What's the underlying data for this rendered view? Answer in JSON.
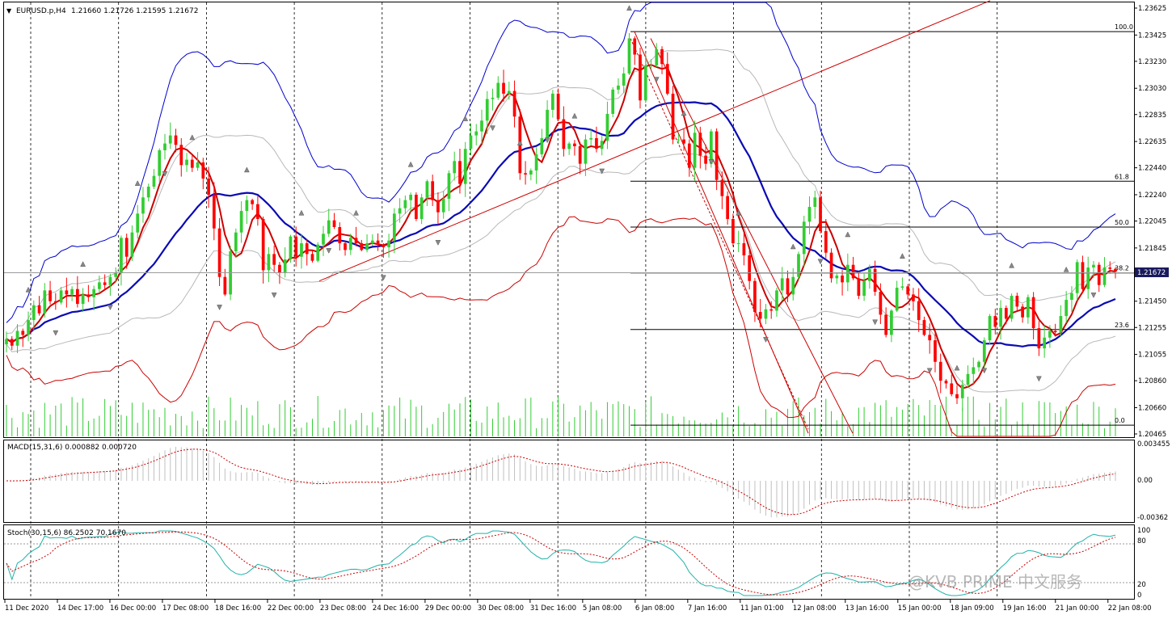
{
  "header": {
    "symbol": "EURUSD.p,H4",
    "ohlc": "1.21660 1.21726 1.21595 1.21672"
  },
  "indicators": {
    "macd": {
      "label": "MACD(15,31,6) 0.000882 0.000720",
      "levels": [
        "0.003455",
        "0.00",
        "-0.00362"
      ]
    },
    "stoch": {
      "label": "Stoch(30,15,6) 86.2502 70.1670",
      "levels": [
        "100",
        "80",
        "20",
        "0"
      ]
    }
  },
  "price_label": "1.21672",
  "watermark": "@KVB PRIME 中文服务",
  "colors": {
    "bull": "#32cd32",
    "bear": "#ff0000",
    "mid_band": "#0000cd",
    "outer_band": "#0000cd",
    "lower_band": "#cc0000",
    "ma_red": "#cc0000",
    "grid": "#000000",
    "fib": "#000000",
    "trend": "#cc0000"
  },
  "chart_data": {
    "type": "candlestick",
    "symbol": "EURUSD.p",
    "timeframe": "H4",
    "ylim": [
      1.20465,
      1.23625
    ],
    "y_ticks": [
      "1.23625",
      "1.23425",
      "1.23230",
      "1.23030",
      "1.22835",
      "1.22635",
      "1.22440",
      "1.22240",
      "1.22045",
      "1.21845",
      "1.21650",
      "1.21450",
      "1.21255",
      "1.21055",
      "1.20860",
      "1.20660",
      "1.20465"
    ],
    "x_ticks": [
      "11 Dec 2020",
      "14 Dec 17:00",
      "16 Dec 00:00",
      "17 Dec 08:00",
      "18 Dec 16:00",
      "22 Dec 00:00",
      "23 Dec 08:00",
      "24 Dec 16:00",
      "29 Dec 00:00",
      "30 Dec 08:00",
      "31 Dec 16:00",
      "5 Jan 08:00",
      "6 Jan 08:00",
      "7 Jan 16:00",
      "11 Jan 01:00",
      "12 Jan 08:00",
      "13 Jan 16:00",
      "15 Jan 00:00",
      "18 Jan 09:00",
      "19 Jan 16:00",
      "21 Jan 00:00",
      "22 Jan 08:00"
    ],
    "fib_levels": [
      {
        "label": "100.0",
        "price": 1.2345
      },
      {
        "label": "61.8",
        "price": 1.2234
      },
      {
        "label": "50.0",
        "price": 1.22
      },
      {
        "label": "38.2",
        "price": 1.2166
      },
      {
        "label": "23.6",
        "price": 1.2124
      },
      {
        "label": "0.0",
        "price": 1.2053
      }
    ],
    "closes": [
      1.2117,
      1.2112,
      1.2123,
      1.212,
      1.2131,
      1.2142,
      1.2136,
      1.2153,
      1.2145,
      1.2144,
      1.2153,
      1.215,
      1.2154,
      1.2143,
      1.215,
      1.2148,
      1.2154,
      1.2159,
      1.2157,
      1.2163,
      1.2166,
      1.2192,
      1.2178,
      1.2196,
      1.221,
      1.2222,
      1.223,
      1.2238,
      1.2257,
      1.2262,
      1.2268,
      1.2261,
      1.2246,
      1.225,
      1.2244,
      1.2248,
      1.2236,
      1.2224,
      1.2199,
      1.2163,
      1.215,
      1.2182,
      1.2196,
      1.2212,
      1.222,
      1.2217,
      1.2206,
      1.2168,
      1.218,
      1.2172,
      1.2166,
      1.2176,
      1.2193,
      1.2178,
      1.2188,
      1.218,
      1.2175,
      1.2187,
      1.2195,
      1.2205,
      1.22,
      1.2188,
      1.2183,
      1.2192,
      1.2188,
      1.2183,
      1.2188,
      1.219,
      1.2187,
      1.2185,
      1.219,
      1.221,
      1.2214,
      1.222,
      1.2224,
      1.2206,
      1.2222,
      1.2234,
      1.222,
      1.2211,
      1.2221,
      1.224,
      1.2249,
      1.2232,
      1.2258,
      1.2268,
      1.2271,
      1.2279,
      1.2295,
      1.2296,
      1.2307,
      1.2299,
      1.2301,
      1.2282,
      1.224,
      1.2239,
      1.2242,
      1.2254,
      1.2266,
      1.2287,
      1.2299,
      1.228,
      1.2258,
      1.2262,
      1.226,
      1.2247,
      1.2265,
      1.2266,
      1.2258,
      1.2264,
      1.2284,
      1.2302,
      1.2305,
      1.2314,
      1.234,
      1.2328,
      1.2294,
      1.232,
      1.232,
      1.2332,
      1.2321,
      1.2299,
      1.2265,
      1.2265,
      1.2262,
      1.2244,
      1.227,
      1.2253,
      1.2247,
      1.2271,
      1.2235,
      1.2223,
      1.2206,
      1.2188,
      1.2188,
      1.2179,
      1.216,
      1.2137,
      1.2132,
      1.2139,
      1.2138,
      1.2153,
      1.2162,
      1.215,
      1.2163,
      1.218,
      1.2204,
      1.2215,
      1.2222,
      1.2197,
      1.2181,
      1.2162,
      1.2164,
      1.2159,
      1.2172,
      1.2162,
      1.2149,
      1.216,
      1.2169,
      1.2152,
      1.2135,
      1.212,
      1.2138,
      1.2155,
      1.2156,
      1.215,
      1.2145,
      1.2131,
      1.212,
      1.2116,
      1.21,
      1.2086,
      1.2084,
      1.2076,
      1.2073,
      1.2083,
      1.2091,
      1.2096,
      1.21,
      1.2116,
      1.2134,
      1.2126,
      1.214,
      1.2132,
      1.2149,
      1.2141,
      1.2133,
      1.2148,
      1.2125,
      1.211,
      1.2118,
      1.2123,
      1.2122,
      1.2134,
      1.2146,
      1.2151,
      1.2174,
      1.2154,
      1.217,
      1.2172,
      1.2157,
      1.217,
      1.2169,
      1.2167
    ]
  }
}
